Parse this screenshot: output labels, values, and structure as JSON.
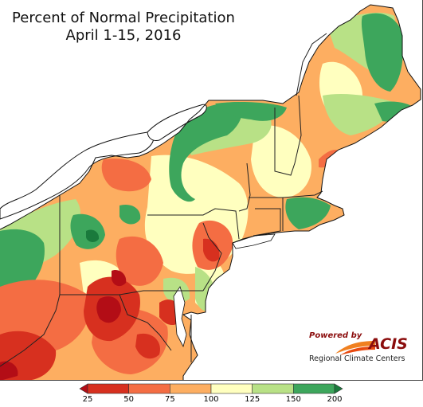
{
  "title": "Percent of Normal Precipitation",
  "subtitle": "April 1-15, 2016",
  "logo": {
    "powered_by": "Powered by",
    "name": "ACIS",
    "subtitle": "Regional Climate Centers"
  },
  "legend": {
    "ticks": [
      "25",
      "50",
      "75",
      "100",
      "125",
      "150",
      "200"
    ],
    "bins": [
      {
        "range": "<25",
        "color": "#b30d16"
      },
      {
        "range": "25-50",
        "color": "#d7301f"
      },
      {
        "range": "50-75",
        "color": "#f46d43"
      },
      {
        "range": "75-100",
        "color": "#fdae61"
      },
      {
        "range": "100-125",
        "color": "#ffffbf"
      },
      {
        "range": "125-150",
        "color": "#b8e186"
      },
      {
        "range": "150-200",
        "color": "#3da65c"
      },
      {
        "range": ">200",
        "color": "#1a7a3c"
      }
    ]
  },
  "map": {
    "region": "Northeast United States",
    "background_color": "#ffffff",
    "water_color": "#ffffff"
  }
}
